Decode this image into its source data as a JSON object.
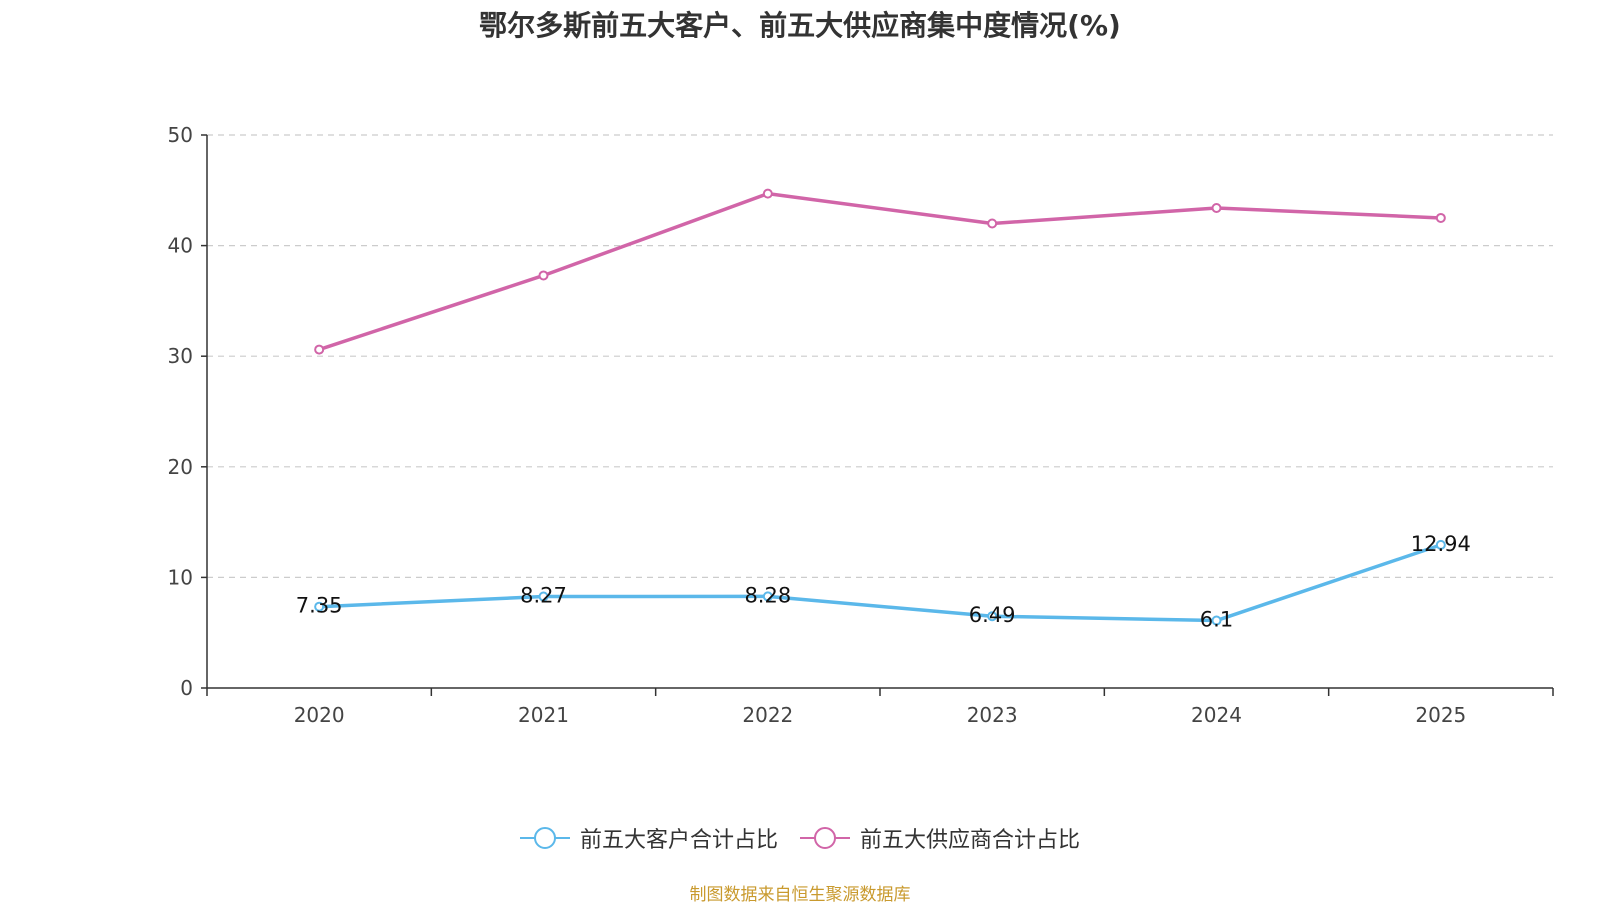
{
  "chart_data": {
    "type": "line",
    "title": "鄂尔多斯前五大客户、前五大供应商集中度情况(%)",
    "categories": [
      "2020",
      "2021",
      "2022",
      "2023",
      "2024",
      "2025"
    ],
    "yticks": [
      "0",
      "10",
      "20",
      "30",
      "40",
      "50"
    ],
    "ylim": [
      0,
      50
    ],
    "grid": true,
    "legend_position": "bottom-center",
    "series": [
      {
        "name": "前五大客户合计占比",
        "color": "#5bb8ea",
        "values": [
          7.35,
          8.27,
          8.28,
          6.49,
          6.1,
          12.94
        ],
        "labels": [
          "7.35",
          "8.27",
          "8.28",
          "6.49",
          "6.1",
          "12.94"
        ],
        "show_labels": true
      },
      {
        "name": "前五大供应商合计占比",
        "color": "#d165a8",
        "values": [
          30.6,
          37.3,
          44.7,
          42.0,
          43.4,
          42.5
        ],
        "show_labels": false
      }
    ]
  },
  "source_note": "制图数据来自恒生聚源数据库"
}
